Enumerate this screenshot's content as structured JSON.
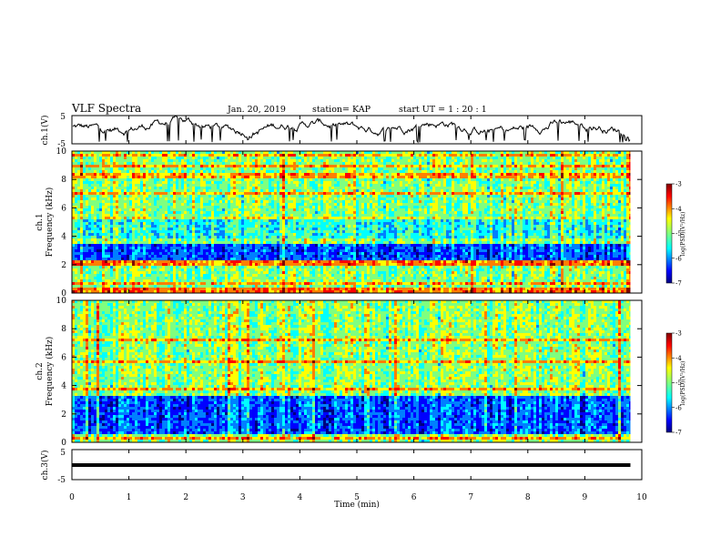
{
  "header": {
    "title": "VLF Spectra",
    "date": "Jan. 20, 2019",
    "station": "station= KAP",
    "start": "start  UT =  1 : 20 : 1"
  },
  "chart_data": [
    {
      "type": "line",
      "panel": "ch1-waveform",
      "ylabel": "ch.1(V)",
      "ylim": [
        -5,
        5
      ],
      "yticks": [
        "5",
        "-5"
      ],
      "x_range_min": [
        0,
        9.8
      ],
      "description_values": "noisy trace fluctuating around ~1 V, mostly between -2 and 4 V"
    },
    {
      "type": "heatmap",
      "panel": "ch1-spectrogram",
      "ylabel": "ch.1\nFrequency (kHz)",
      "ylim": [
        0,
        10
      ],
      "yticks": [
        "0",
        "2",
        "4",
        "6",
        "8",
        "10"
      ],
      "x_range_min": [
        0,
        9.8
      ],
      "colorbar": {
        "label": "log(PSD)(V²/Hz)",
        "range": [
          -7,
          -3
        ],
        "ticks": [
          "-3",
          "-4",
          "-5",
          "-6",
          "-7"
        ]
      },
      "bands": [
        {
          "freq_khz": [
            0.0,
            0.3
          ],
          "level": "high"
        },
        {
          "freq_khz": [
            0.3,
            2.0
          ],
          "level": "mid"
        },
        {
          "freq_khz": [
            2.0,
            2.4
          ],
          "level": "high"
        },
        {
          "freq_khz": [
            2.4,
            3.4
          ],
          "level": "low"
        },
        {
          "freq_khz": [
            3.4,
            3.9
          ],
          "level": "mid"
        },
        {
          "freq_khz": [
            3.9,
            5.3
          ],
          "level": "mid-low"
        },
        {
          "freq_khz": [
            5.3,
            10.0
          ],
          "level": "mid"
        }
      ]
    },
    {
      "type": "heatmap",
      "panel": "ch2-spectrogram",
      "ylabel": "ch.2\nFrequency (kHz)",
      "ylim": [
        0,
        10
      ],
      "yticks": [
        "0",
        "2",
        "4",
        "6",
        "8",
        "10"
      ],
      "x_range_min": [
        0,
        9.8
      ],
      "colorbar": {
        "label": "log(PSD)(V²/Hz)",
        "range": [
          -7,
          -3
        ],
        "ticks": [
          "-3",
          "-4",
          "-5",
          "-6",
          "-7"
        ]
      },
      "bands": [
        {
          "freq_khz": [
            0.0,
            0.5
          ],
          "level": "mid"
        },
        {
          "freq_khz": [
            0.5,
            2.0
          ],
          "level": "low"
        },
        {
          "freq_khz": [
            2.0,
            3.2
          ],
          "level": "low"
        },
        {
          "freq_khz": [
            3.2,
            10.0
          ],
          "level": "mid"
        }
      ]
    },
    {
      "type": "line",
      "panel": "ch3-waveform",
      "ylabel": "ch.3(V)",
      "ylim": [
        -5,
        5
      ],
      "yticks": [
        "5",
        "-5"
      ],
      "x": [
        0,
        9.8
      ],
      "y": [
        -1,
        -1
      ]
    }
  ],
  "xaxis": {
    "label": "Time  (min)",
    "ticks": [
      "0",
      "1",
      "2",
      "3",
      "4",
      "5",
      "6",
      "7",
      "8",
      "9",
      "10"
    ],
    "range": [
      0,
      10
    ]
  },
  "colors": {
    "jet": [
      "#00007f",
      "#0000ff",
      "#007fff",
      "#00ffff",
      "#7fff7f",
      "#ffff00",
      "#ff7f00",
      "#ff0000",
      "#7f0000"
    ]
  }
}
